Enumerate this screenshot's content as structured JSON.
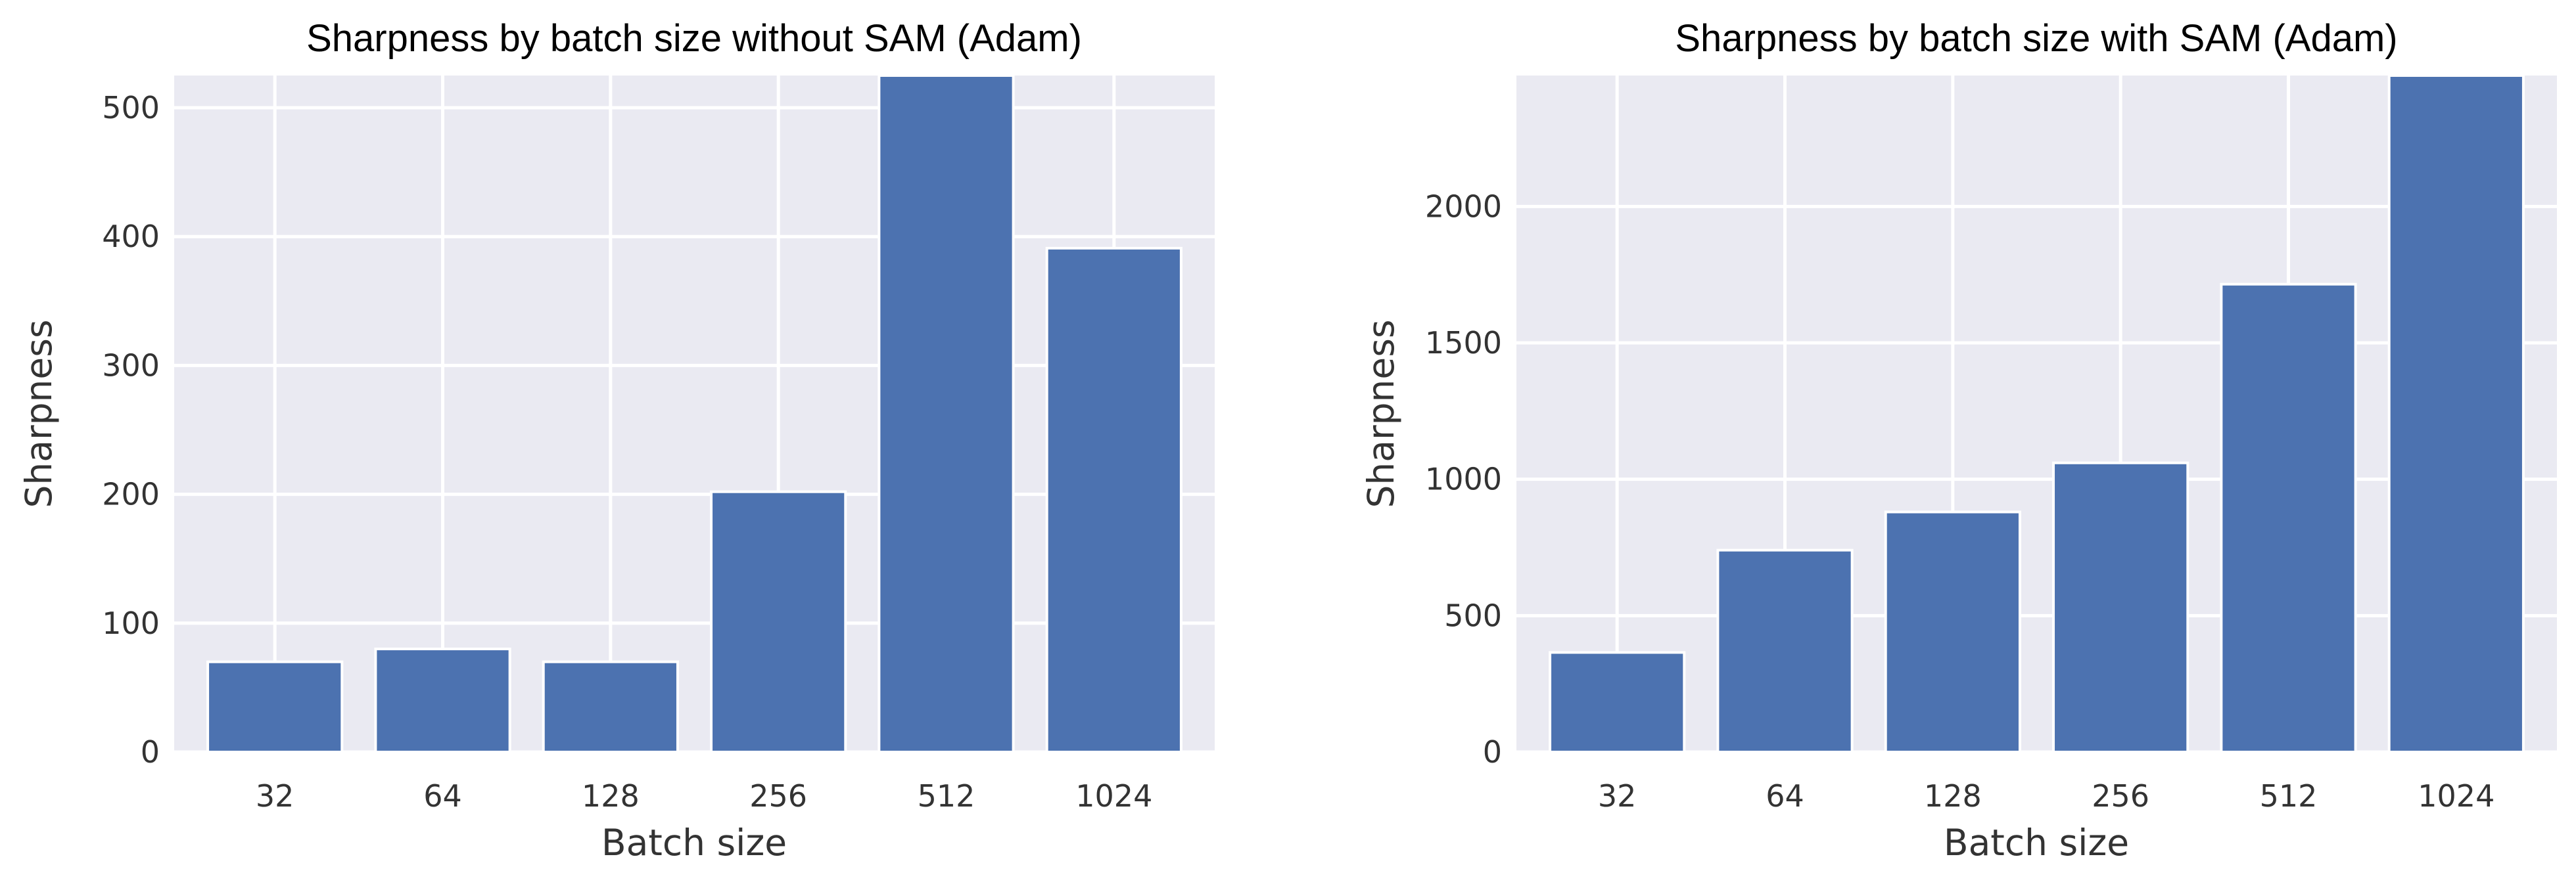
{
  "colors": {
    "bar": "#4c72b0",
    "plot_background": "#eaeaf2",
    "grid": "#ffffff",
    "text": "#333333"
  },
  "chart_data": [
    {
      "type": "bar",
      "title": "Sharpness by batch size without SAM (Adam)",
      "xlabel": "Batch size",
      "ylabel": "Sharpness",
      "categories": [
        "32",
        "64",
        "128",
        "256",
        "512",
        "1024"
      ],
      "values": [
        70,
        80,
        70,
        202,
        525,
        391
      ],
      "ylim": [
        0,
        525
      ],
      "yticks": [
        0,
        100,
        200,
        300,
        400,
        500
      ],
      "grid": true,
      "legend": "none"
    },
    {
      "type": "bar",
      "title": "Sharpness by batch size with SAM (Adam)",
      "xlabel": "Batch size",
      "ylabel": "Sharpness",
      "categories": [
        "32",
        "64",
        "128",
        "256",
        "512",
        "1024"
      ],
      "values": [
        365,
        740,
        880,
        1060,
        1715,
        2480
      ],
      "ylim": [
        0,
        2480
      ],
      "yticks": [
        0,
        500,
        1000,
        1500,
        2000
      ],
      "grid": true,
      "legend": "none"
    }
  ]
}
